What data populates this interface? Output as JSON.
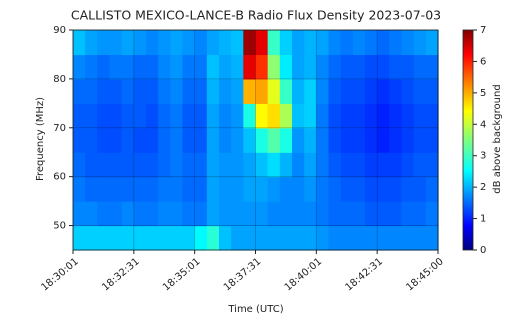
{
  "chart_data": {
    "type": "heatmap",
    "title": "CALLISTO MEXICO-LANCE-B Radio Flux Density 2023-07-03",
    "x_label": "Time (UTC)",
    "y_label": "Frequency (MHz)",
    "colorbar_label": "dB above background",
    "colormap": "jet",
    "grid": true,
    "x": [
      "18:30:01",
      null,
      null,
      null,
      null,
      "18:32:31",
      null,
      null,
      null,
      null,
      "18:35:01",
      null,
      null,
      null,
      null,
      "18:37:31",
      null,
      null,
      null,
      null,
      "18:40:01",
      null,
      null,
      null,
      null,
      "18:42:31",
      null,
      null,
      null,
      null,
      "18:45:00"
    ],
    "y": [
      45,
      50,
      55,
      60,
      65,
      70,
      75,
      80,
      85,
      90
    ],
    "ylim": [
      45,
      90
    ],
    "yticks": [
      50,
      60,
      70,
      80,
      90
    ],
    "zlim": [
      0,
      7
    ],
    "zticks": [
      0,
      1,
      2,
      3,
      4,
      5,
      6,
      7
    ],
    "z": [
      [
        2.3,
        2.3,
        2.3,
        2.3,
        2.3,
        2.3,
        2.3,
        2.3,
        2.3,
        2.3,
        2.6,
        2.9,
        2.2,
        2.0,
        2.0,
        2.0,
        2.0,
        2.0,
        2.0,
        2.0,
        1.9,
        1.8,
        1.8,
        1.8,
        1.8,
        1.8,
        1.8,
        1.8,
        1.8,
        1.8
      ],
      [
        1.8,
        1.8,
        1.7,
        1.7,
        1.8,
        1.7,
        1.7,
        1.8,
        1.8,
        1.7,
        1.7,
        2.0,
        1.9,
        1.9,
        1.9,
        1.9,
        1.8,
        1.8,
        1.8,
        1.8,
        1.7,
        1.6,
        1.6,
        1.6,
        1.5,
        1.5,
        1.5,
        1.6,
        1.6,
        1.7
      ],
      [
        1.7,
        1.6,
        1.6,
        1.6,
        1.6,
        1.6,
        1.6,
        1.7,
        1.7,
        1.6,
        1.6,
        2.0,
        1.9,
        1.9,
        2.0,
        2.0,
        1.9,
        1.8,
        1.8,
        1.9,
        1.7,
        1.6,
        1.5,
        1.5,
        1.4,
        1.4,
        1.4,
        1.5,
        1.5,
        1.6
      ],
      [
        1.6,
        1.5,
        1.5,
        1.5,
        1.5,
        1.5,
        1.5,
        1.6,
        1.7,
        1.6,
        1.6,
        2.0,
        1.9,
        1.9,
        2.0,
        2.2,
        2.4,
        2.1,
        1.8,
        2.0,
        1.7,
        1.5,
        1.4,
        1.4,
        1.3,
        1.3,
        1.3,
        1.4,
        1.5,
        1.5
      ],
      [
        1.5,
        1.5,
        1.4,
        1.4,
        1.5,
        1.4,
        1.4,
        1.6,
        1.7,
        1.5,
        1.5,
        2.0,
        1.8,
        1.9,
        2.2,
        2.8,
        3.2,
        2.8,
        1.9,
        2.1,
        1.7,
        1.4,
        1.3,
        1.3,
        1.2,
        1.1,
        1.2,
        1.3,
        1.4,
        1.4
      ],
      [
        1.5,
        1.5,
        1.4,
        1.4,
        1.5,
        1.5,
        1.4,
        1.6,
        1.7,
        1.5,
        1.5,
        2.0,
        1.8,
        1.9,
        2.8,
        4.4,
        4.6,
        3.8,
        2.2,
        2.3,
        1.7,
        1.4,
        1.3,
        1.3,
        1.2,
        1.1,
        1.2,
        1.3,
        1.4,
        1.4
      ],
      [
        1.6,
        1.6,
        1.5,
        1.5,
        1.6,
        1.5,
        1.5,
        1.7,
        1.8,
        1.6,
        1.6,
        2.1,
        1.9,
        2.0,
        4.9,
        5.0,
        4.2,
        3.0,
        2.1,
        2.3,
        1.8,
        1.5,
        1.4,
        1.4,
        1.3,
        1.2,
        1.3,
        1.4,
        1.5,
        1.5
      ],
      [
        1.8,
        1.7,
        1.6,
        1.7,
        1.7,
        1.6,
        1.6,
        1.8,
        1.9,
        1.7,
        1.7,
        2.2,
        2.0,
        2.1,
        6.3,
        5.8,
        3.6,
        2.5,
        2.0,
        2.1,
        1.8,
        1.6,
        1.5,
        1.5,
        1.4,
        1.4,
        1.5,
        1.5,
        1.6,
        1.6
      ],
      [
        2.2,
        2.0,
        1.9,
        1.9,
        2.0,
        1.9,
        1.8,
        1.9,
        2.0,
        1.9,
        1.8,
        2.0,
        2.1,
        2.2,
        6.8,
        6.3,
        3.0,
        2.3,
        2.0,
        2.1,
        2.0,
        1.8,
        1.7,
        1.8,
        1.7,
        1.6,
        1.7,
        1.8,
        1.9,
        2.0
      ]
    ]
  }
}
